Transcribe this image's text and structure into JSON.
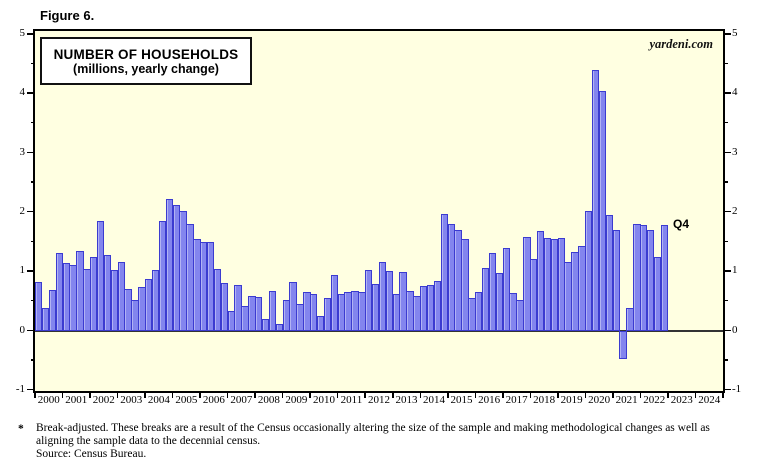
{
  "figure_label": "Figure 6.",
  "watermark": "yardeni.com",
  "q4_annotation": "Q4",
  "chart_data": {
    "type": "bar",
    "title": "NUMBER OF HOUSEHOLDS",
    "subtitle": "(millions, yearly change)",
    "ylabel": "millions, yearly change",
    "ylim": [
      -1,
      5
    ],
    "yticks": [
      -1,
      0,
      1,
      2,
      3,
      4,
      5
    ],
    "ytick_minor_step": 0.5,
    "grid": "zero-line-only",
    "legend_position": "none",
    "x_axis_years": [
      "2000",
      "2001",
      "2002",
      "2003",
      "2004",
      "2005",
      "2006",
      "2007",
      "2008",
      "2009",
      "2010",
      "2011",
      "2012",
      "2013",
      "2014",
      "2015",
      "2016",
      "2017",
      "2018",
      "2019",
      "2020",
      "2021",
      "2022",
      "2023",
      "2024"
    ],
    "x_axis_span_years": 25,
    "last_point_label": "Q4",
    "plot_bg_color": "#FFFFE1",
    "bar_fill_color": "#8385EE",
    "bar_border_color": "#3B3BD0",
    "categories": [
      "2000Q1",
      "2000Q2",
      "2000Q3",
      "2000Q4",
      "2001Q1",
      "2001Q2",
      "2001Q3",
      "2001Q4",
      "2002Q1",
      "2002Q2",
      "2002Q3",
      "2002Q4",
      "2003Q1",
      "2003Q2",
      "2003Q3",
      "2003Q4",
      "2004Q1",
      "2004Q2",
      "2004Q3",
      "2004Q4",
      "2005Q1",
      "2005Q2",
      "2005Q3",
      "2005Q4",
      "2006Q1",
      "2006Q2",
      "2006Q3",
      "2006Q4",
      "2007Q1",
      "2007Q2",
      "2007Q3",
      "2007Q4",
      "2008Q1",
      "2008Q2",
      "2008Q3",
      "2008Q4",
      "2009Q1",
      "2009Q2",
      "2009Q3",
      "2009Q4",
      "2010Q1",
      "2010Q2",
      "2010Q3",
      "2010Q4",
      "2011Q1",
      "2011Q2",
      "2011Q3",
      "2011Q4",
      "2012Q1",
      "2012Q2",
      "2012Q3",
      "2012Q4",
      "2013Q1",
      "2013Q2",
      "2013Q3",
      "2013Q4",
      "2014Q1",
      "2014Q2",
      "2014Q3",
      "2014Q4",
      "2015Q1",
      "2015Q2",
      "2015Q3",
      "2015Q4",
      "2016Q1",
      "2016Q2",
      "2016Q3",
      "2016Q4",
      "2017Q1",
      "2017Q2",
      "2017Q3",
      "2017Q4",
      "2018Q1",
      "2018Q2",
      "2018Q3",
      "2018Q4",
      "2019Q1",
      "2019Q2",
      "2019Q3",
      "2019Q4",
      "2020Q1",
      "2020Q2",
      "2020Q3",
      "2020Q4",
      "2021Q1",
      "2021Q2",
      "2021Q3",
      "2021Q4",
      "2022Q1",
      "2022Q2",
      "2022Q3",
      "2022Q4"
    ],
    "values": [
      0.82,
      0.39,
      0.69,
      1.31,
      1.14,
      1.11,
      1.34,
      1.04,
      1.25,
      1.85,
      1.28,
      1.03,
      1.17,
      0.7,
      0.53,
      0.74,
      0.87,
      1.02,
      1.85,
      2.23,
      2.12,
      2.03,
      1.8,
      1.55,
      1.5,
      1.5,
      1.04,
      0.81,
      0.33,
      0.77,
      0.42,
      0.59,
      0.57,
      0.2,
      0.67,
      0.12,
      0.52,
      0.83,
      0.45,
      0.65,
      0.62,
      0.25,
      0.55,
      0.94,
      0.62,
      0.65,
      0.67,
      0.65,
      1.03,
      0.8,
      1.17,
      1.01,
      0.62,
      0.99,
      0.67,
      0.59,
      0.76,
      0.77,
      0.85,
      1.98,
      1.8,
      1.7,
      1.55,
      0.55,
      0.66,
      1.07,
      1.32,
      0.97,
      1.4,
      0.64,
      0.52,
      1.59,
      1.21,
      1.68,
      1.57,
      1.55,
      1.56,
      1.17,
      1.33,
      1.43,
      2.03,
      4.4,
      4.05,
      1.96,
      1.7,
      -0.47,
      0.38,
      1.8,
      1.78,
      1.71,
      1.24,
      1.78
    ]
  },
  "footnote": {
    "marker": "*",
    "line1": "Break-adjusted. These breaks are a result of the Census occasionally altering the size of the sample and making methodological changes as well as",
    "line2": "aligning the sample data to the decennial census.",
    "line3": "Source: Census Bureau."
  }
}
